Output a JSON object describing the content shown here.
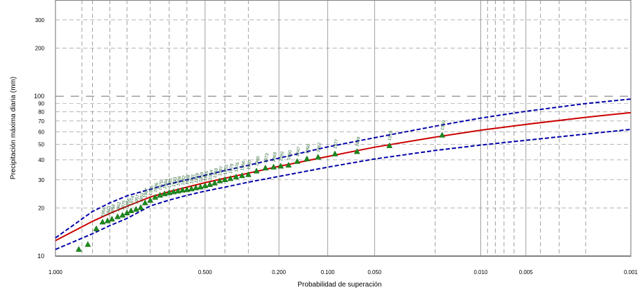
{
  "chart_data": {
    "type": "scatter",
    "title": "",
    "xlabel": "Probabilidad de superación",
    "ylabel": "Precipitación máxima diaria (mm)",
    "x_scale": "gumbel-probability",
    "y_scale": "log",
    "xlim": [
      0.999,
      0.001
    ],
    "ylim": [
      10,
      400
    ],
    "grid": true,
    "x_tick_labels": [
      "1.000",
      "0.500",
      "0.200",
      "0.100",
      "0.050",
      "0.010",
      "0.005",
      "0.001"
    ],
    "x_ticks": [
      0.999,
      0.5,
      0.2,
      0.1,
      0.05,
      0.01,
      0.005,
      0.001
    ],
    "y_tick_labels": [
      "10",
      "20",
      "30",
      "40",
      "50",
      "60",
      "70",
      "80",
      "90",
      "100",
      "200",
      "300"
    ],
    "y_ticks": [
      10,
      20,
      30,
      40,
      50,
      60,
      70,
      80,
      90,
      100,
      200,
      300
    ],
    "colors": {
      "fit": "#cc0000",
      "confidence": "#0000aa",
      "observed": "#1b8a1b",
      "year_labels": "#2e6b3a",
      "grid": "#888888"
    },
    "series": [
      {
        "role": "fit",
        "x": [
          0.999,
          0.98,
          0.95,
          0.9,
          0.8,
          0.7,
          0.6,
          0.5,
          0.4,
          0.3,
          0.2,
          0.1,
          0.05,
          0.02,
          0.01,
          0.005,
          0.002,
          0.001
        ],
        "y": [
          12.5,
          16.5,
          18.5,
          20.5,
          23.4,
          25.3,
          27.0,
          28.8,
          30.7,
          33.0,
          36.4,
          42.0,
          48.0,
          55.5,
          61.3,
          66.7,
          73.8,
          79.0
        ]
      },
      {
        "role": "upper-confidence",
        "x": [
          0.999,
          0.98,
          0.95,
          0.9,
          0.8,
          0.7,
          0.6,
          0.5,
          0.4,
          0.3,
          0.2,
          0.1,
          0.05,
          0.02,
          0.01,
          0.005,
          0.002,
          0.001
        ],
        "y": [
          13.0,
          19.0,
          21.5,
          23.8,
          26.2,
          28.3,
          30.0,
          32.0,
          34.3,
          37.0,
          41.0,
          48.2,
          55.0,
          65.0,
          73.0,
          80.5,
          90.0,
          96.0
        ]
      },
      {
        "role": "lower-confidence",
        "x": [
          0.999,
          0.98,
          0.95,
          0.9,
          0.8,
          0.7,
          0.6,
          0.5,
          0.4,
          0.3,
          0.2,
          0.1,
          0.05,
          0.02,
          0.01,
          0.005,
          0.002,
          0.001
        ],
        "y": [
          11.0,
          13.8,
          15.5,
          17.2,
          20.6,
          22.4,
          24.0,
          25.5,
          27.0,
          29.0,
          31.5,
          36.0,
          40.5,
          45.8,
          49.5,
          53.0,
          58.0,
          62.0
        ]
      },
      {
        "role": "observed",
        "points": [
          {
            "x": 0.992,
            "y": 11.0,
            "label": ""
          },
          {
            "x": 0.985,
            "y": 11.8,
            "label": ""
          },
          {
            "x": 0.975,
            "y": 14.8,
            "label": ""
          },
          {
            "x": 0.965,
            "y": 16.3,
            "label": "1964"
          },
          {
            "x": 0.955,
            "y": 16.6,
            "label": "1963"
          },
          {
            "x": 0.945,
            "y": 17.0,
            "label": "1958"
          },
          {
            "x": 0.93,
            "y": 17.6,
            "label": "1962"
          },
          {
            "x": 0.915,
            "y": 18.0,
            "label": "1975"
          },
          {
            "x": 0.9,
            "y": 18.6,
            "label": "1956"
          },
          {
            "x": 0.885,
            "y": 19.2,
            "label": "1974"
          },
          {
            "x": 0.865,
            "y": 19.6,
            "label": "1957"
          },
          {
            "x": 0.845,
            "y": 20.1,
            "label": "1952"
          },
          {
            "x": 0.825,
            "y": 21.5,
            "label": "1987"
          },
          {
            "x": 0.8,
            "y": 22.3,
            "label": "1985"
          },
          {
            "x": 0.775,
            "y": 23.3,
            "label": "1995"
          },
          {
            "x": 0.75,
            "y": 24.0,
            "label": "1970"
          },
          {
            "x": 0.725,
            "y": 24.5,
            "label": "1984"
          },
          {
            "x": 0.7,
            "y": 24.9,
            "label": "1991"
          },
          {
            "x": 0.675,
            "y": 25.2,
            "label": "1993"
          },
          {
            "x": 0.65,
            "y": 25.5,
            "label": "1998"
          },
          {
            "x": 0.625,
            "y": 25.8,
            "label": "1982"
          },
          {
            "x": 0.6,
            "y": 26.0,
            "label": "1988"
          },
          {
            "x": 0.575,
            "y": 26.3,
            "label": "1981"
          },
          {
            "x": 0.55,
            "y": 26.7,
            "label": "1989"
          },
          {
            "x": 0.525,
            "y": 27.0,
            "label": "1959"
          },
          {
            "x": 0.5,
            "y": 27.5,
            "label": "1965"
          },
          {
            "x": 0.475,
            "y": 28.0,
            "label": "1954"
          },
          {
            "x": 0.45,
            "y": 28.6,
            "label": "1968"
          },
          {
            "x": 0.425,
            "y": 29.5,
            "label": "1997"
          },
          {
            "x": 0.4,
            "y": 30.0,
            "label": "1953"
          },
          {
            "x": 0.375,
            "y": 30.5,
            "label": "1979"
          },
          {
            "x": 0.35,
            "y": 31.2,
            "label": "1976"
          },
          {
            "x": 0.325,
            "y": 31.8,
            "label": "1966"
          },
          {
            "x": 0.3,
            "y": 32.3,
            "label": "1997"
          },
          {
            "x": 0.27,
            "y": 34.0,
            "label": "1960"
          },
          {
            "x": 0.24,
            "y": 35.5,
            "label": "1973"
          },
          {
            "x": 0.215,
            "y": 36.0,
            "label": "1969"
          },
          {
            "x": 0.195,
            "y": 36.5,
            "label": "1992"
          },
          {
            "x": 0.175,
            "y": 37.0,
            "label": "1980"
          },
          {
            "x": 0.155,
            "y": 39.0,
            "label": "1947"
          },
          {
            "x": 0.135,
            "y": 40.5,
            "label": "1990"
          },
          {
            "x": 0.115,
            "y": 41.5,
            "label": "1967"
          },
          {
            "x": 0.09,
            "y": 43.5,
            "label": "1977"
          },
          {
            "x": 0.065,
            "y": 45.0,
            "label": "1949"
          },
          {
            "x": 0.04,
            "y": 49.0,
            "label": "1970"
          },
          {
            "x": 0.018,
            "y": 57.0,
            "label": "1950"
          }
        ]
      }
    ]
  }
}
